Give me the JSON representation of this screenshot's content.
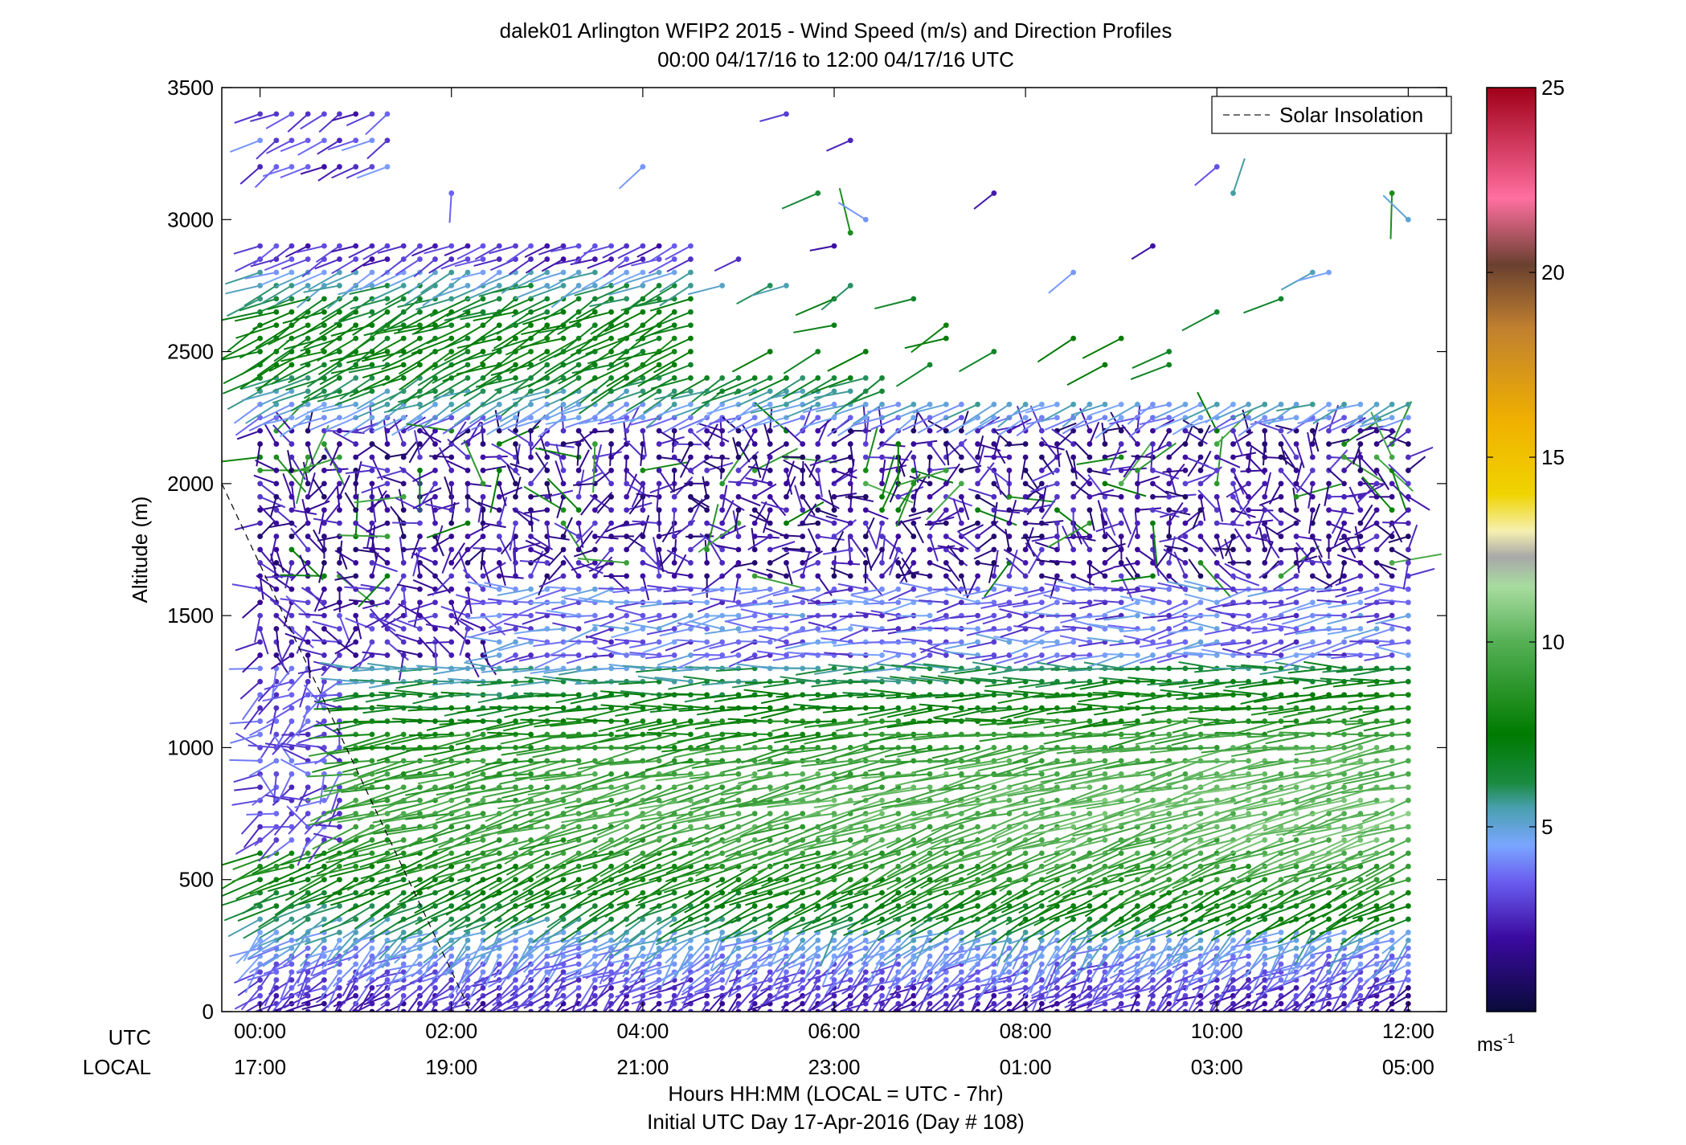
{
  "chart_data": {
    "type": "wind-barb-profile",
    "title": "dalek01 Arlington WFIP2 2015 - Wind Speed (m/s) and Direction Profiles",
    "subtitle": "00:00 04/17/16 to 12:00 04/17/16  UTC",
    "ylabel": "Altitude (m)",
    "xlabel": "Hours HH:MM  (LOCAL = UTC - 7hr)",
    "xlabel2": "Initial UTC Day 17-Apr-2016 (Day # 108)",
    "utc_label": "UTC",
    "local_label": "LOCAL",
    "xlim_hours": [
      -0.4,
      12.4
    ],
    "ylim": [
      0,
      3500
    ],
    "y_ticks": [
      0,
      500,
      1000,
      1500,
      2000,
      2500,
      3000,
      3500
    ],
    "y_tick_labels": [
      "0",
      "500",
      "1000",
      "1500",
      "2000",
      "2500",
      "3000",
      "3500"
    ],
    "x_ticks_hours": [
      0,
      2,
      4,
      6,
      8,
      10,
      12
    ],
    "x_ticks_utc": [
      "00:00",
      "02:00",
      "04:00",
      "06:00",
      "08:00",
      "10:00",
      "12:00"
    ],
    "x_ticks_local": [
      "17:00",
      "19:00",
      "21:00",
      "23:00",
      "01:00",
      "03:00",
      "05:00"
    ],
    "legend": {
      "label": "Solar Insolation",
      "placement": "top-right"
    },
    "solar_insolation_line": {
      "x_hours": [
        -0.4,
        2.2
      ],
      "y": [
        2000,
        0
      ]
    },
    "colorbar": {
      "range": [
        0,
        25
      ],
      "ticks": [
        5,
        10,
        15,
        20,
        25
      ],
      "tick_labels": [
        "5",
        "10",
        "15",
        "20",
        "25"
      ],
      "unit": "ms",
      "unit_exp": "-1",
      "stops": [
        [
          0,
          "#0a0a3a"
        ],
        [
          2,
          "#3b0aa0"
        ],
        [
          3.5,
          "#6a5cf0"
        ],
        [
          4.5,
          "#7aa6ff"
        ],
        [
          5.5,
          "#4aa0b0"
        ],
        [
          6.2,
          "#1a8a40"
        ],
        [
          7.5,
          "#007a00"
        ],
        [
          10,
          "#55b055"
        ],
        [
          11.5,
          "#a8dca0"
        ],
        [
          12.3,
          "#a8a8a8"
        ],
        [
          13,
          "#f5f0b0"
        ],
        [
          14,
          "#f0d400"
        ],
        [
          16,
          "#f0b000"
        ],
        [
          18.5,
          "#c08030"
        ],
        [
          20.2,
          "#6a4030"
        ],
        [
          22,
          "#ff6fa0"
        ],
        [
          25,
          "#a00018"
        ]
      ]
    },
    "profile_times_hours": [
      0,
      0.17,
      0.33,
      0.5,
      0.67,
      0.83,
      1,
      1.17,
      1.33,
      1.5,
      1.67,
      1.83,
      2,
      2.17,
      2.33,
      2.5,
      2.67,
      2.83,
      3,
      3.17,
      3.33,
      3.5,
      3.67,
      3.83,
      4,
      4.17,
      4.33,
      4.5,
      4.67,
      4.83,
      5,
      5.17,
      5.33,
      5.5,
      5.67,
      5.83,
      6,
      6.17,
      6.33,
      6.5,
      6.67,
      6.83,
      7,
      7.17,
      7.33,
      7.5,
      7.67,
      7.83,
      8,
      8.17,
      8.33,
      8.5,
      8.67,
      8.83,
      9,
      9.17,
      9.33,
      9.5,
      9.67,
      9.83,
      10,
      10.17,
      10.33,
      10.5,
      10.67,
      10.83,
      11,
      11.17,
      11.33,
      11.5,
      11.67,
      11.83,
      12
    ],
    "altitudes_m": [
      0,
      30,
      60,
      90,
      120,
      150,
      180,
      210,
      240,
      270,
      300,
      350,
      400,
      450,
      500,
      550,
      600,
      650,
      700,
      750,
      800,
      850,
      900,
      950,
      1000,
      1050,
      1100,
      1150,
      1200,
      1250,
      1300,
      1350,
      1400,
      1450,
      1500,
      1550,
      1600,
      1650,
      1700,
      1750,
      1800,
      1850,
      1900,
      1950,
      2000,
      2050,
      2100,
      2150,
      2200,
      2250,
      2300,
      2350,
      2400,
      2450,
      2500,
      2550,
      2600,
      2650,
      2700,
      2750,
      2800,
      2850,
      2900,
      2950,
      3000,
      3100,
      3200,
      3300,
      3400
    ],
    "profile_regimes": [
      {
        "alt_m": [
          0,
          300
        ],
        "speed_ms": [
          2,
          5
        ],
        "dir_deg": "south-westerly, variable"
      },
      {
        "alt_m": [
          300,
          1300
        ],
        "speed_ms": [
          5,
          10
        ],
        "dir_deg": "south-westerly, veering with height"
      },
      {
        "alt_m": [
          1300,
          1600
        ],
        "speed_ms": [
          2,
          5
        ],
        "dir_deg": "westerly"
      },
      {
        "alt_m": [
          1600,
          2200
        ],
        "speed_ms": [
          0.5,
          3
        ],
        "dir_deg": "variable"
      },
      {
        "alt_m": [
          2200,
          2900
        ],
        "speed_ms": [
          3,
          8
        ],
        "dir_deg": "south-westerly"
      },
      {
        "alt_m": [
          3200,
          3500
        ],
        "speed_ms": [
          2,
          4
        ],
        "dir_deg": "south-westerly"
      }
    ]
  }
}
